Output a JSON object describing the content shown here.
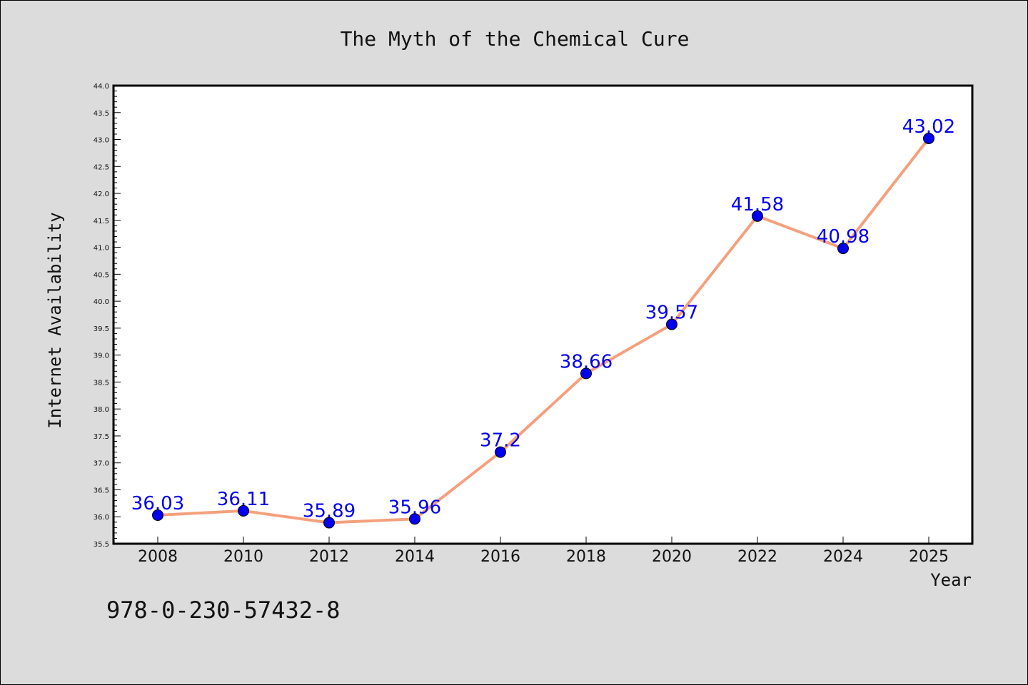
{
  "chart_data": {
    "type": "line",
    "title": "The Myth of the Chemical Cure",
    "xlabel": "Year",
    "ylabel": "Internet Availability",
    "categories": [
      "2008",
      "2010",
      "2012",
      "2014",
      "2016",
      "2018",
      "2020",
      "2022",
      "2024",
      "2025"
    ],
    "values": [
      36.03,
      36.11,
      35.89,
      35.96,
      37.2,
      38.66,
      39.57,
      41.58,
      40.98,
      43.02
    ],
    "data_labels": [
      "36.03",
      "36.11",
      "35.89",
      "35.96",
      "37.2",
      "38.66",
      "39.57",
      "41.58",
      "40.98",
      "43.02"
    ],
    "ylim": [
      35.5,
      44.0
    ],
    "yticks": [
      "35.5",
      "36.0",
      "36.5",
      "37.0",
      "37.5",
      "38.0",
      "38.5",
      "39.0",
      "39.5",
      "40.0",
      "40.5",
      "41.0",
      "41.5",
      "42.0",
      "42.5",
      "43.0",
      "43.5",
      "44.0"
    ],
    "grid": false,
    "line_color": "#f4a07c",
    "marker_color": "#0000ee",
    "label_color": "#0000ee",
    "plot_background": "#ffffff",
    "figure_background": "#dcdcdc"
  },
  "caption": "978-0-230-57432-8"
}
